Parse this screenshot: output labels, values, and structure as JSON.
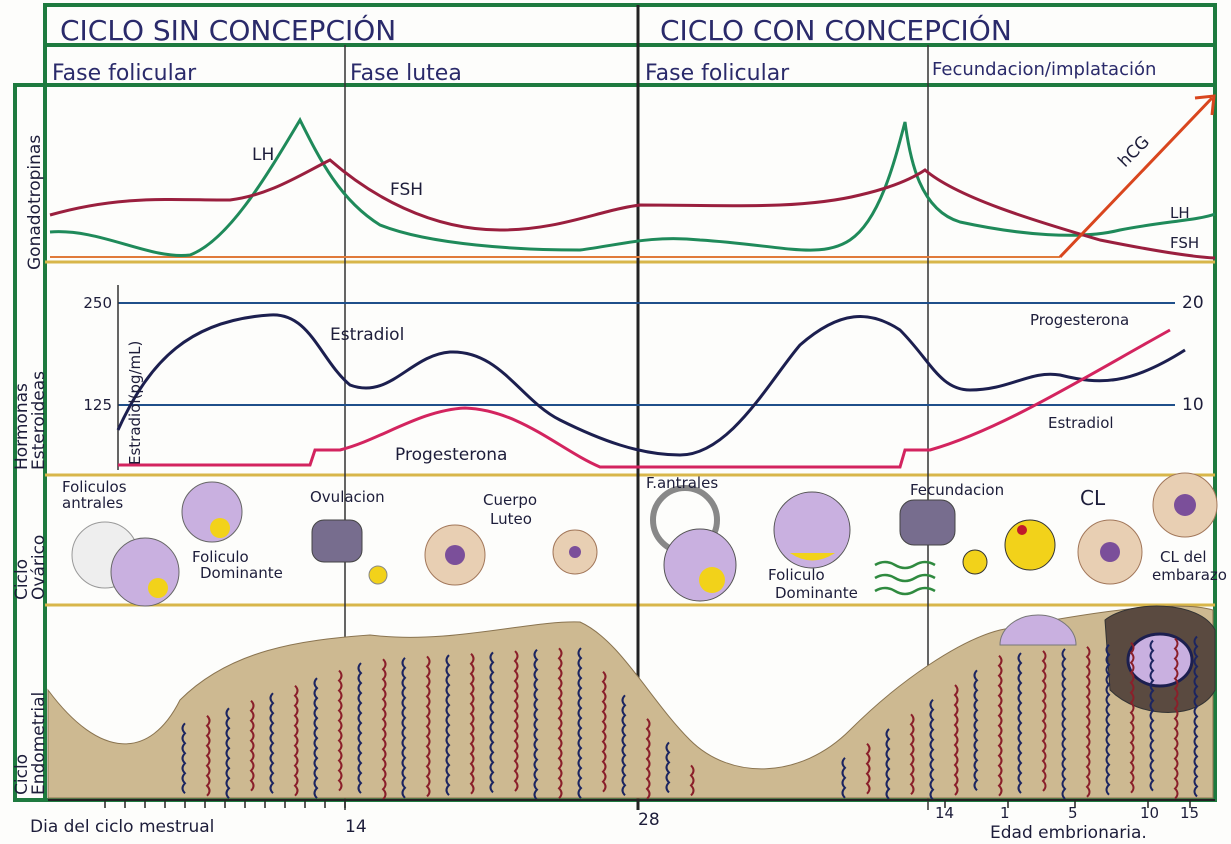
{
  "header": {
    "titles": [
      "CICLO SIN CONCEPCIÓN",
      "CICLO CON CONCEPCIÓN"
    ]
  },
  "phases": [
    "Fase folicular",
    "Fase lutea",
    "Fase folicular",
    "Fecundacion/implatación"
  ],
  "rows": [
    [
      "Gonadotropinas"
    ],
    [
      "Hormonas",
      "Esteroideas"
    ],
    [
      "Ciclo",
      "Ovárico"
    ],
    [
      "Ciclo",
      "Endometrial"
    ]
  ],
  "gonadotropins": {
    "labels": [
      "LH",
      "FSH",
      "hCG",
      "LH",
      "FSH"
    ]
  },
  "steroids": {
    "left_ticks": [
      "250",
      "125"
    ],
    "left_axis": "Estradiol(pg/mL)",
    "right_ticks": [
      "20",
      "10"
    ],
    "labels": [
      "Estradiol",
      "Progesterona",
      "Progesterona",
      "Estradiol"
    ]
  },
  "ovary": {
    "labels": [
      [
        "Foliculos",
        "antrales"
      ],
      [
        "Foliculo",
        "Dominante"
      ],
      [
        "Ovulacion"
      ],
      [
        "Cuerpo",
        "Luteo"
      ],
      [
        "F.antrales"
      ],
      [
        "Foliculo",
        "Dominante"
      ],
      [
        "Fecundacion"
      ],
      [
        "CL"
      ],
      [
        "CL del",
        "embarazo"
      ]
    ]
  },
  "bottom": {
    "caption": "Dia del ciclo mestrual",
    "days": [
      "14",
      "28",
      "14"
    ],
    "embryo_days": [
      "1",
      "5",
      "10",
      "15"
    ],
    "embryo_caption": "Edad embrionaria."
  }
}
